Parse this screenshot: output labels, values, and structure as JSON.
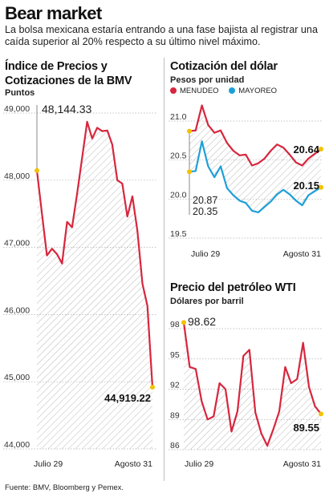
{
  "title": "Bear market",
  "subtitle": "La bolsa mexicana estaría entrando a una fase bajista al registrar una caída superior al 20% respecto a su último nivel máximo.",
  "source": "Fuente: BMV, Bloomberg y Pemex.",
  "colors": {
    "red": "#d7263d",
    "blue": "#1e9fd8",
    "yellow": "#f2c200",
    "grid": "#b0b0b0"
  },
  "chart_data": [
    {
      "type": "area",
      "title": "Índice de Precios y Cotizaciones de la BMV",
      "ylabel": "Puntos",
      "ylim": [
        44000,
        49000
      ],
      "yticks": [
        44000,
        45000,
        46000,
        47000,
        48000,
        49000
      ],
      "ytick_labels": [
        "44,000",
        "45,000",
        "46,000",
        "47,000",
        "48,000",
        "49,000"
      ],
      "x_labels": [
        "Julio 29",
        "Agosto 31"
      ],
      "series": [
        {
          "values": [
            48144.33,
            47500,
            46880,
            46980,
            46900,
            46760,
            47380,
            47300,
            47800,
            48330,
            48870,
            48620,
            48780,
            48730,
            48740,
            48530,
            48000,
            47950,
            47460,
            47760,
            47250,
            46460,
            46130,
            44919.22
          ]
        }
      ],
      "annotations": [
        {
          "label": "48,144.33",
          "value": 48144.33
        },
        {
          "label": "44,919.22",
          "value": 44919.22
        }
      ]
    },
    {
      "type": "line",
      "title": "Cotización del dólar",
      "ylabel": "Pesos por unidad",
      "ylim": [
        19.5,
        21.0
      ],
      "yticks": [
        19.5,
        20.0,
        20.5,
        21.0
      ],
      "ytick_labels": [
        "19.5",
        "20.0",
        "20.5",
        "21.0"
      ],
      "x_labels": [
        "Julio 29",
        "Agosto 31"
      ],
      "legend": [
        "MENUDEO",
        "MAYOREO"
      ],
      "legend_position": "top-left",
      "series": [
        {
          "name": "MENUDEO",
          "values": [
            20.87,
            20.88,
            21.2,
            20.95,
            20.85,
            20.88,
            20.72,
            20.62,
            20.56,
            20.57,
            20.43,
            20.46,
            20.52,
            20.62,
            20.7,
            20.66,
            20.57,
            20.47,
            20.43,
            20.52,
            20.58,
            20.64
          ]
        },
        {
          "name": "MAYOREO",
          "values": [
            20.35,
            20.36,
            20.74,
            20.42,
            20.28,
            20.42,
            20.14,
            20.05,
            19.98,
            19.95,
            19.85,
            19.83,
            19.9,
            19.97,
            20.06,
            20.12,
            20.06,
            19.98,
            19.92,
            20.05,
            20.1,
            20.15
          ]
        }
      ],
      "annotations": [
        {
          "label": "20.87",
          "series": "MENUDEO",
          "value": 20.87
        },
        {
          "label": "20.35",
          "series": "MAYOREO",
          "value": 20.35
        },
        {
          "label": "20.64",
          "series": "MENUDEO",
          "value": 20.64
        },
        {
          "label": "20.15",
          "series": "MAYOREO",
          "value": 20.15
        }
      ]
    },
    {
      "type": "area",
      "title": "Precio del petróleo WTI",
      "ylabel": "Dólares por barril",
      "ylim": [
        86,
        98
      ],
      "yticks": [
        86,
        89,
        92,
        95,
        98
      ],
      "ytick_labels": [
        "86",
        "89",
        "92",
        "95",
        "98"
      ],
      "x_labels": [
        "Julio 29",
        "Agosto 31"
      ],
      "series": [
        {
          "values": [
            98.62,
            94.2,
            94.0,
            90.8,
            89.0,
            89.3,
            92.6,
            92.0,
            87.8,
            89.8,
            95.3,
            95.9,
            89.7,
            87.6,
            86.4,
            88.0,
            89.8,
            94.2,
            92.6,
            93.0,
            96.6,
            92.2,
            90.3,
            89.55
          ]
        }
      ],
      "annotations": [
        {
          "label": "98.62",
          "value": 98.62
        },
        {
          "label": "89.55",
          "value": 89.55
        }
      ]
    }
  ]
}
